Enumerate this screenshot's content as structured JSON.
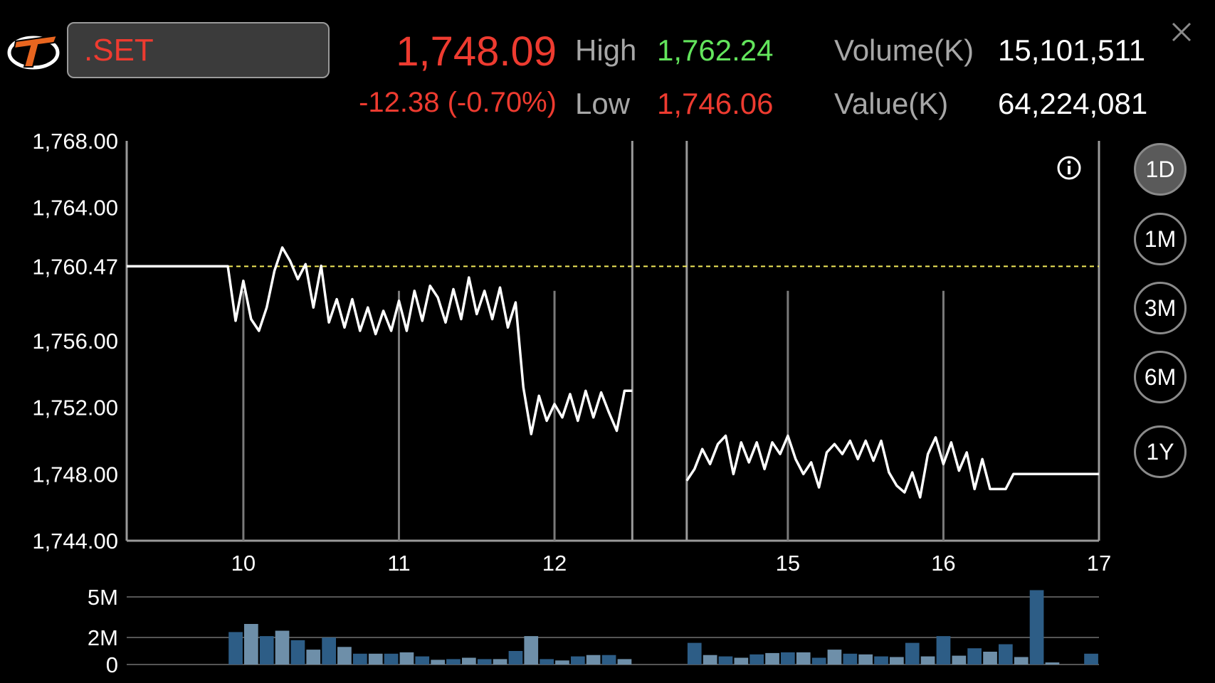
{
  "header": {
    "symbol": ".SET",
    "last_price": "1,748.09",
    "change": "-12.38 (-0.70%)",
    "high_label": "High",
    "high_value": "1,762.24",
    "low_label": "Low",
    "low_value": "1,746.06",
    "volume_label": "Volume(K)",
    "volume_value": "15,101,511",
    "value_label": "Value(K)",
    "value_value": "64,224,081"
  },
  "periods": [
    {
      "label": "1D",
      "active": true
    },
    {
      "label": "1M",
      "active": false
    },
    {
      "label": "3M",
      "active": false
    },
    {
      "label": "6M",
      "active": false
    },
    {
      "label": "1Y",
      "active": false
    }
  ],
  "icons": {
    "logo": "trader-logo-icon",
    "close": "close-icon",
    "info": "info-icon"
  },
  "colors": {
    "up": "#63e55c",
    "down": "#ee3b30",
    "prev_close_line": "#f2ea5a",
    "volume_bar": "#2d5d86"
  },
  "chart_data": [
    {
      "type": "line",
      "title": "",
      "ylim": [
        1744,
        1768
      ],
      "y_ticks": [
        "1,768.00",
        "1,764.00",
        "1,756.00",
        "1,752.00",
        "1,748.00",
        "1,744.00"
      ],
      "y_tick_values": [
        1768,
        1764,
        1756,
        1752,
        1748,
        1744
      ],
      "reference_line": {
        "label": "1,760.47",
        "value": 1760.47
      },
      "x_ticks": [
        "10",
        "11",
        "12",
        "15",
        "16",
        "17"
      ],
      "x_tick_values": [
        1.5,
        2.5,
        3.5,
        5.0,
        6.0,
        7.0
      ],
      "session_boundaries": [
        4.0,
        4.35
      ],
      "xlim": [
        0.75,
        7.0
      ],
      "x": [
        0.75,
        1.4,
        1.45,
        1.5,
        1.55,
        1.6,
        1.65,
        1.7,
        1.75,
        1.8,
        1.85,
        1.9,
        1.95,
        2.0,
        2.05,
        2.1,
        2.15,
        2.2,
        2.25,
        2.3,
        2.35,
        2.4,
        2.45,
        2.5,
        2.55,
        2.6,
        2.65,
        2.7,
        2.75,
        2.8,
        2.85,
        2.9,
        2.95,
        3.0,
        3.05,
        3.1,
        3.15,
        3.2,
        3.25,
        3.3,
        3.35,
        3.4,
        3.45,
        3.5,
        3.55,
        3.6,
        3.65,
        3.7,
        3.75,
        3.8,
        3.85,
        3.9,
        3.95,
        4.0,
        4.35,
        4.4,
        4.45,
        4.5,
        4.55,
        4.6,
        4.65,
        4.7,
        4.75,
        4.8,
        4.85,
        4.9,
        4.95,
        5.0,
        5.05,
        5.1,
        5.15,
        5.2,
        5.25,
        5.3,
        5.35,
        5.4,
        5.45,
        5.5,
        5.55,
        5.6,
        5.65,
        5.7,
        5.75,
        5.8,
        5.85,
        5.9,
        5.95,
        6.0,
        6.05,
        6.1,
        6.15,
        6.2,
        6.25,
        6.3,
        6.35,
        6.4,
        6.45,
        6.5,
        6.55,
        6.6,
        6.65,
        7.0
      ],
      "y": [
        1760.47,
        1760.47,
        1757.2,
        1759.6,
        1757.3,
        1756.6,
        1758.0,
        1760.2,
        1761.6,
        1760.8,
        1759.7,
        1760.6,
        1758.0,
        1760.5,
        1757.1,
        1758.5,
        1756.8,
        1758.5,
        1756.6,
        1758.0,
        1756.4,
        1757.8,
        1756.6,
        1758.4,
        1756.6,
        1759.0,
        1757.2,
        1759.3,
        1758.6,
        1757.1,
        1759.1,
        1757.3,
        1759.8,
        1757.6,
        1759.0,
        1757.3,
        1759.2,
        1756.8,
        1758.3,
        1753.2,
        1750.4,
        1752.7,
        1751.2,
        1752.2,
        1751.4,
        1752.8,
        1751.2,
        1753.0,
        1751.4,
        1752.9,
        1751.7,
        1750.6,
        1753.0,
        1753.0,
        1747.6,
        1748.3,
        1749.5,
        1748.6,
        1749.8,
        1750.3,
        1748.0,
        1749.9,
        1748.7,
        1749.9,
        1748.3,
        1749.9,
        1749.2,
        1750.3,
        1748.9,
        1748.0,
        1748.7,
        1747.2,
        1749.3,
        1749.8,
        1749.2,
        1750.0,
        1748.9,
        1750.0,
        1748.8,
        1750.0,
        1748.1,
        1747.3,
        1746.9,
        1748.1,
        1746.6,
        1749.2,
        1750.2,
        1748.6,
        1749.9,
        1748.2,
        1749.3,
        1747.1,
        1748.9,
        1747.1,
        1747.1,
        1747.1,
        1748.0,
        1748.0,
        1748.0,
        1748.0,
        1748.0,
        1748.0
      ]
    },
    {
      "type": "bar",
      "title": "",
      "ylim": [
        0,
        6
      ],
      "y_ticks": [
        "5M",
        "2M",
        "0"
      ],
      "y_tick_values": [
        5,
        2,
        0
      ],
      "x": [
        1.45,
        1.55,
        1.65,
        1.75,
        1.85,
        1.95,
        2.05,
        2.15,
        2.25,
        2.35,
        2.45,
        2.55,
        2.65,
        2.75,
        2.85,
        2.95,
        3.05,
        3.15,
        3.25,
        3.35,
        3.45,
        3.55,
        3.65,
        3.75,
        3.85,
        3.95,
        4.4,
        4.5,
        4.6,
        4.7,
        4.8,
        4.9,
        5.0,
        5.1,
        5.2,
        5.3,
        5.4,
        5.5,
        5.6,
        5.7,
        5.8,
        5.9,
        6.0,
        6.1,
        6.2,
        6.3,
        6.4,
        6.5,
        6.6,
        6.7,
        6.95
      ],
      "values": [
        2.4,
        3.0,
        2.1,
        2.5,
        1.8,
        1.1,
        2.0,
        1.3,
        0.8,
        0.8,
        0.8,
        0.9,
        0.6,
        0.35,
        0.4,
        0.5,
        0.4,
        0.4,
        1.0,
        2.1,
        0.4,
        0.3,
        0.6,
        0.7,
        0.7,
        0.4,
        1.6,
        0.7,
        0.6,
        0.5,
        0.75,
        0.85,
        0.9,
        0.9,
        0.5,
        1.1,
        0.8,
        0.75,
        0.6,
        0.55,
        1.6,
        0.6,
        2.1,
        0.65,
        1.2,
        0.95,
        1.5,
        0.55,
        5.5,
        0.15,
        0.8
      ]
    }
  ]
}
